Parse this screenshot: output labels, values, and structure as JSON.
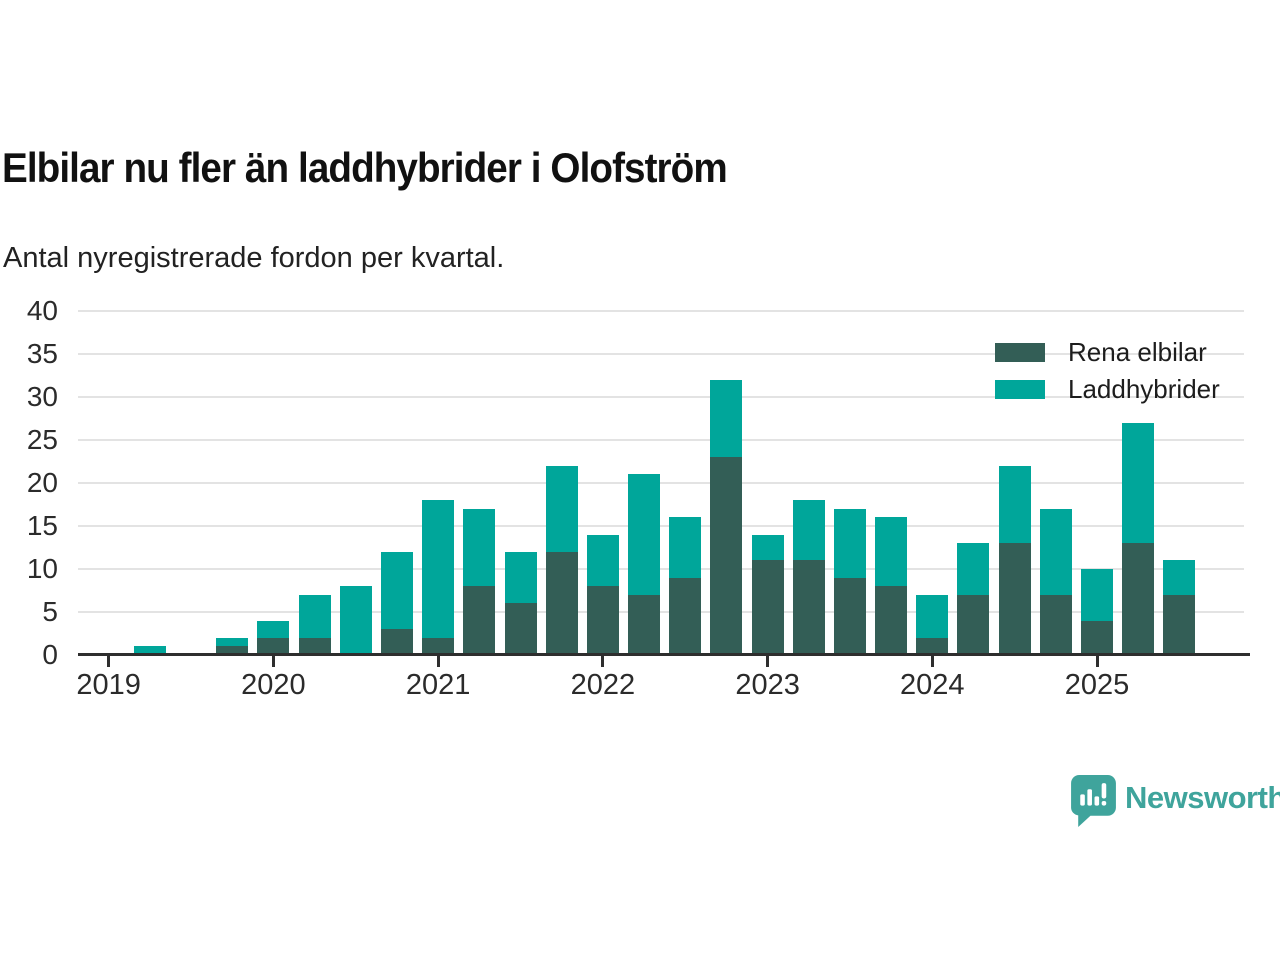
{
  "header": {
    "title": "Elbilar nu fler än laddhybrider i Olofström",
    "subtitle": "Antal nyregistrerade fordon per kvartal."
  },
  "legend": [
    {
      "label": "Rena elbilar",
      "color": "#335e56"
    },
    {
      "label": "Laddhybrider",
      "color": "#00a69a"
    }
  ],
  "footer": {
    "brand": "Newsworthy",
    "logo_icon": "newsworthy-speech-bubble-chart-icon"
  },
  "colors": {
    "elbilar_dark": "#335e56",
    "laddhybrider_teal": "#00a69a",
    "grid": "#e3e3e3",
    "axis": "#2e2e2e",
    "title_text": "#111111",
    "body_text": "#222222",
    "logo_teal": "#3fa49c"
  },
  "chart_data": {
    "type": "bar",
    "stacked": true,
    "title": "Elbilar nu fler än laddhybrider i Olofström",
    "subtitle": "Antal nyregistrerade fordon per kvartal.",
    "xlabel": "",
    "ylabel": "",
    "ylim": [
      0,
      40
    ],
    "yticks": [
      0,
      5,
      10,
      15,
      20,
      25,
      30,
      35,
      40
    ],
    "grid": true,
    "legend_position": "top-right",
    "x_tick_labels": [
      "2019",
      "2020",
      "2021",
      "2022",
      "2023",
      "2024",
      "2025"
    ],
    "categories": [
      "2019 K1",
      "2019 K2",
      "2019 K3",
      "2019 K4",
      "2020 K1",
      "2020 K2",
      "2020 K3",
      "2020 K4",
      "2021 K1",
      "2021 K2",
      "2021 K3",
      "2021 K4",
      "2022 K1",
      "2022 K2",
      "2022 K3",
      "2022 K4",
      "2023 K1",
      "2023 K2",
      "2023 K3",
      "2023 K4",
      "2024 K1",
      "2024 K2",
      "2024 K3",
      "2024 K4",
      "2025 K1",
      "2025 K2",
      "2025 K3"
    ],
    "series": [
      {
        "name": "Rena elbilar",
        "values": [
          0,
          0,
          0,
          1,
          2,
          2,
          0,
          3,
          2,
          8,
          6,
          12,
          8,
          7,
          9,
          23,
          11,
          11,
          9,
          8,
          2,
          7,
          13,
          7,
          4,
          13,
          7
        ]
      },
      {
        "name": "Laddhybrider",
        "values": [
          0,
          1,
          0,
          1,
          2,
          5,
          8,
          9,
          16,
          9,
          6,
          10,
          6,
          14,
          7,
          9,
          3,
          7,
          8,
          8,
          5,
          6,
          9,
          10,
          6,
          14,
          4
        ]
      }
    ],
    "totals": [
      0,
      1,
      0,
      2,
      4,
      7,
      8,
      12,
      18,
      17,
      12,
      22,
      14,
      21,
      16,
      32,
      14,
      18,
      17,
      16,
      7,
      13,
      22,
      17,
      10,
      27,
      11
    ]
  }
}
